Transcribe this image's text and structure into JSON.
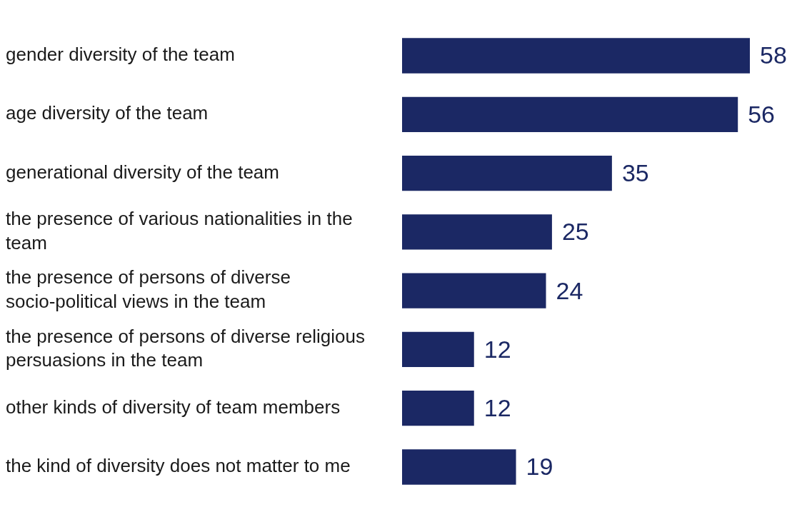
{
  "chart_data": {
    "type": "bar",
    "orientation": "horizontal",
    "data_labels": true,
    "color": "#1b2864",
    "categories": [
      "gender diversity of the team",
      "age diversity of the team",
      "generational diversity of the team",
      "the presence of various nationalities in the team",
      "the presence of persons of diverse socio-political views in the team",
      "the presence of persons of diverse religious persuasions in the team",
      "other kinds of diversity of team members",
      "the kind of diversity does not matter to me"
    ],
    "values": [
      58,
      56,
      35,
      25,
      24,
      12,
      12,
      19
    ]
  }
}
